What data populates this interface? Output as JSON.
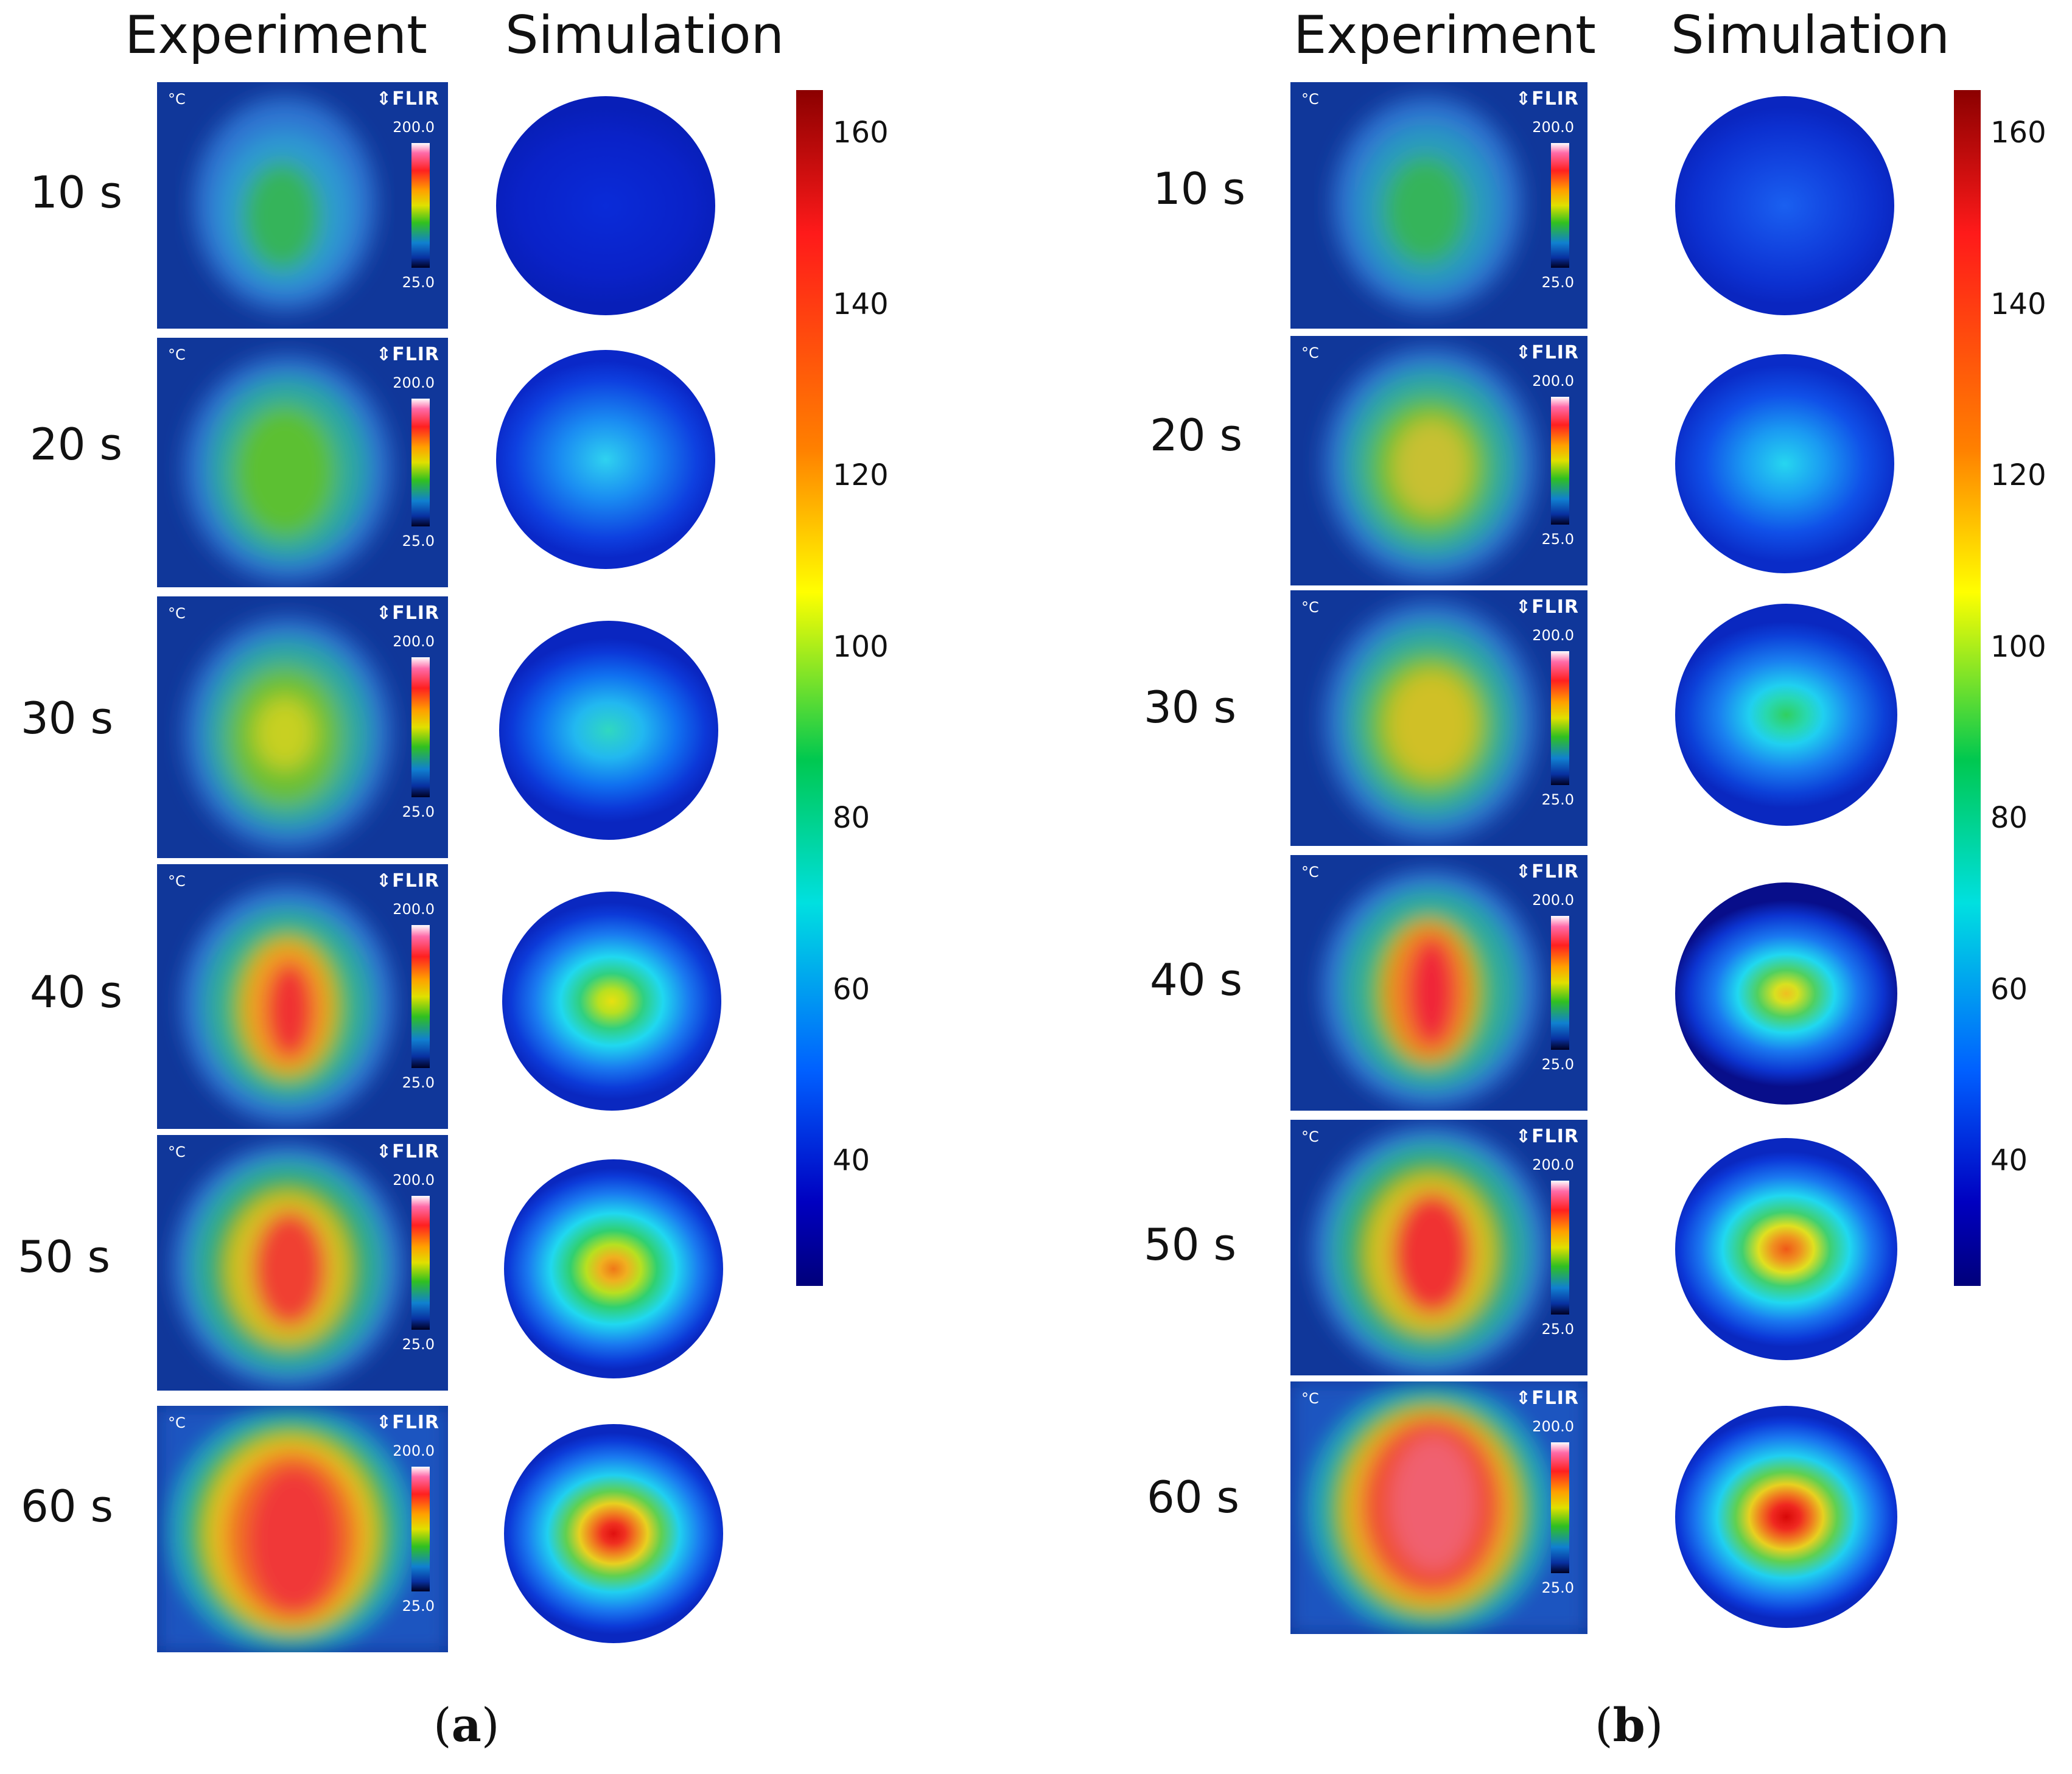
{
  "figure": {
    "panels": [
      {
        "id": "a",
        "caption_open": "(",
        "caption_letter": "a",
        "caption_close": ")",
        "header_experiment": "Experiment",
        "header_simulation": "Simulation",
        "colorbar_ticks": [
          "160",
          "140",
          "120",
          "100",
          "80",
          "60",
          "40"
        ],
        "rows": [
          {
            "time": "10 s",
            "flir_unit": "°C",
            "flir_brand": "⇕FLIR",
            "scale_max": "200.0",
            "scale_min": "25.0"
          },
          {
            "time": "20 s",
            "flir_unit": "°C",
            "flir_brand": "⇕FLIR",
            "scale_max": "200.0",
            "scale_min": "25.0"
          },
          {
            "time": "30 s",
            "flir_unit": "°C",
            "flir_brand": "⇕FLIR",
            "scale_max": "200.0",
            "scale_min": "25.0"
          },
          {
            "time": "40 s",
            "flir_unit": "°C",
            "flir_brand": "⇕FLIR",
            "scale_max": "200.0",
            "scale_min": "25.0"
          },
          {
            "time": "50 s",
            "flir_unit": "°C",
            "flir_brand": "⇕FLIR",
            "scale_max": "200.0",
            "scale_min": "25.0"
          },
          {
            "time": "60 s",
            "flir_unit": "°C",
            "flir_brand": "⇕FLIR",
            "scale_max": "200.0",
            "scale_min": "25.0"
          }
        ]
      },
      {
        "id": "b",
        "caption_open": "(",
        "caption_letter": "b",
        "caption_close": ")",
        "header_experiment": "Experiment",
        "header_simulation": "Simulation",
        "colorbar_ticks": [
          "160",
          "140",
          "120",
          "100",
          "80",
          "60",
          "40"
        ],
        "rows": [
          {
            "time": "10 s",
            "flir_unit": "°C",
            "flir_brand": "⇕FLIR",
            "scale_max": "200.0",
            "scale_min": "25.0"
          },
          {
            "time": "20 s",
            "flir_unit": "°C",
            "flir_brand": "⇕FLIR",
            "scale_max": "200.0",
            "scale_min": "25.0"
          },
          {
            "time": "30 s",
            "flir_unit": "°C",
            "flir_brand": "⇕FLIR",
            "scale_max": "200.0",
            "scale_min": "25.0"
          },
          {
            "time": "40 s",
            "flir_unit": "°C",
            "flir_brand": "⇕FLIR",
            "scale_max": "200.0",
            "scale_min": "25.0"
          },
          {
            "time": "50 s",
            "flir_unit": "°C",
            "flir_brand": "⇕FLIR",
            "scale_max": "200.0",
            "scale_min": "25.0"
          },
          {
            "time": "60 s",
            "flir_unit": "°C",
            "flir_brand": "⇕FLIR",
            "scale_max": "200.0",
            "scale_min": "25.0"
          }
        ]
      }
    ]
  }
}
